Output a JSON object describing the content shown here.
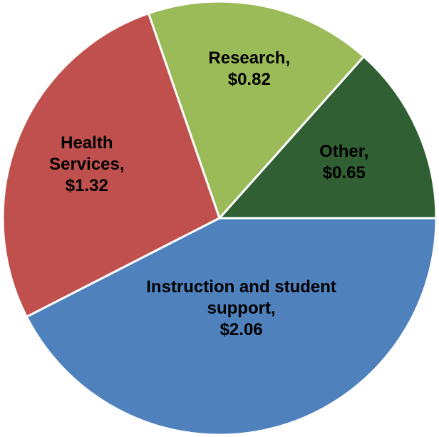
{
  "chart_data": {
    "type": "pie",
    "categories": [
      "Other,",
      "Research,",
      "Health Services,",
      "Instruction and student support,"
    ],
    "values": [
      0.65,
      0.82,
      1.32,
      2.06
    ],
    "value_labels": [
      "$0.65",
      "$0.82",
      "$1.32",
      "$2.06"
    ],
    "colors": [
      "#2f5f33",
      "#9bbb59",
      "#c0504d",
      "#4f81bd"
    ]
  }
}
